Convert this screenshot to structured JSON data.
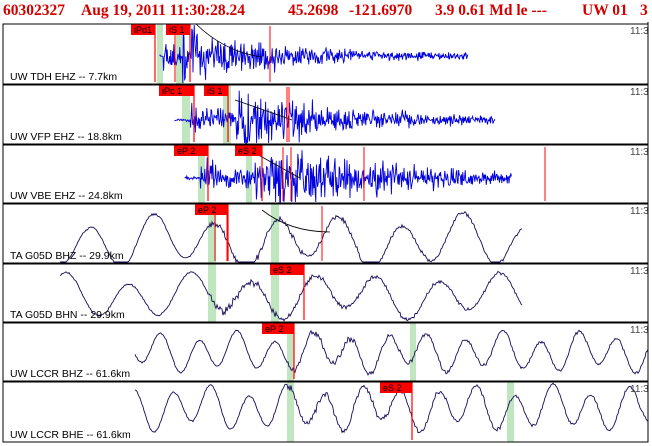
{
  "header": {
    "event_id": "60302327",
    "datetime": "Aug 19, 2011 11:30:28.24",
    "latitude": "45.2698",
    "longitude": "-121.6970",
    "magnitude": "3.9 0.61 Md le ---",
    "network": "UW 01",
    "extra": "3"
  },
  "colors": {
    "header_text": "#d40000",
    "short_period_trace": "#0000e0",
    "broadband_trace": "#1a0a5a",
    "pick_flag": "#ff0000",
    "pick_window": "#bfe6bf",
    "border": "#000000"
  },
  "time_tick_label": "11:3",
  "traces": [
    {
      "label": "UW TDH EHZ -- 7.7km",
      "type": "short-period",
      "picks": [
        {
          "text": "iPd1",
          "phase": "P"
        },
        {
          "text": "iS 1",
          "phase": "S"
        }
      ]
    },
    {
      "label": "UW VFP EHZ -- 18.8km",
      "type": "short-period",
      "picks": [
        {
          "text": "iPc 1",
          "phase": "P"
        },
        {
          "text": "iS 1",
          "phase": "S"
        }
      ]
    },
    {
      "label": "UW VBE EHZ -- 24.8km",
      "type": "short-period",
      "picks": [
        {
          "text": "eP 2",
          "phase": "P"
        },
        {
          "text": "eS 2",
          "phase": "S"
        }
      ]
    },
    {
      "label": "TA G05D BHZ -- 29.9km",
      "type": "broadband",
      "picks": [
        {
          "text": "eP 2",
          "phase": "P"
        }
      ]
    },
    {
      "label": "TA G05D BHN -- 29.9km",
      "type": "broadband",
      "picks": [
        {
          "text": "eS 2",
          "phase": "S"
        }
      ]
    },
    {
      "label": "UW LCCR BHZ -- 61.6km",
      "type": "broadband",
      "picks": [
        {
          "text": "eP 2",
          "phase": "P"
        }
      ]
    },
    {
      "label": "UW LCCR BHE -- 61.6km",
      "type": "broadband",
      "picks": [
        {
          "text": "eS 2",
          "phase": "S"
        }
      ]
    }
  ]
}
